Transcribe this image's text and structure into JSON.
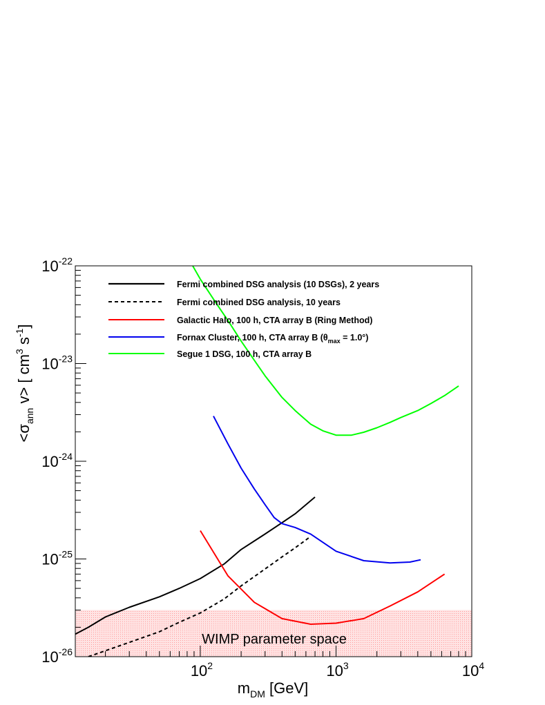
{
  "chart_data": {
    "type": "line",
    "xlabel": {
      "base": "m",
      "sub": "DM",
      "rest": " [GeV]"
    },
    "ylabel": {
      "pre": "<σ",
      "sub": "ann",
      "mid": " v> [ cm",
      "sup1": "3",
      "mid2": " s",
      "sup2": "-1",
      "post": "]"
    },
    "xscale": "log",
    "yscale": "log",
    "xlim": [
      12,
      10000
    ],
    "ylim": [
      1e-26,
      1e-22
    ],
    "x_ticks": [
      {
        "value": 100,
        "base": "10",
        "exp": "2"
      },
      {
        "value": 1000,
        "base": "10",
        "exp": "3"
      },
      {
        "value": 10000,
        "base": "10",
        "exp": "4"
      }
    ],
    "y_ticks": [
      {
        "value": 1e-26,
        "base": "10",
        "exp": "-26"
      },
      {
        "value": 1e-25,
        "base": "10",
        "exp": "-25"
      },
      {
        "value": 1e-24,
        "base": "10",
        "exp": "-24"
      },
      {
        "value": 1e-23,
        "base": "10",
        "exp": "-23"
      },
      {
        "value": 1e-22,
        "base": "10",
        "exp": "-22"
      }
    ],
    "legend_placement": "top-left",
    "grid": false,
    "series": [
      {
        "name": "Fermi combined DSG analysis (10 DSGs), 2 years",
        "color": "#000000",
        "dash": "solid",
        "x": [
          12,
          15,
          20,
          30,
          50,
          70,
          100,
          150,
          200,
          300,
          400,
          500,
          700
        ],
        "y": [
          1.7e-26,
          2e-26,
          2.55e-26,
          3.2e-26,
          4.1e-26,
          5e-26,
          6.3e-26,
          8.9e-26,
          1.25e-25,
          1.8e-25,
          2.35e-25,
          2.9e-25,
          4.3e-25
        ]
      },
      {
        "name": "Fermi combined DSG analysis, 10 years",
        "color": "#000000",
        "dash": "dashed",
        "x": [
          15,
          20,
          30,
          50,
          70,
          100,
          150,
          200,
          300,
          400,
          500,
          650
        ],
        "y": [
          1e-26,
          1.15e-26,
          1.4e-26,
          1.8e-26,
          2.25e-26,
          2.8e-26,
          3.9e-26,
          5.3e-26,
          7.9e-26,
          1.05e-25,
          1.3e-25,
          1.7e-25
        ]
      },
      {
        "name": {
          "text": "Galactic Halo, 100 h, CTA array B (Ring Method)"
        },
        "color": "#ff0000",
        "dash": "solid",
        "x": [
          100,
          160,
          250,
          400,
          650,
          1000,
          1600,
          2500,
          4000,
          6300
        ],
        "y": [
          1.95e-25,
          6.7e-26,
          3.6e-26,
          2.45e-26,
          2.15e-26,
          2.2e-26,
          2.45e-26,
          3.3e-26,
          4.6e-26,
          7e-26
        ]
      },
      {
        "name": "Fornax Cluster, 100 h, CTA array B",
        "name_suffix": {
          "pre": " (θ",
          "sub": "max",
          "post": " = 1.0°)"
        },
        "color": "#0000ee",
        "dash": "solid",
        "x": [
          125,
          160,
          200,
          250,
          300,
          350,
          400,
          500,
          650,
          1000,
          1600,
          2500,
          3500,
          4200
        ],
        "y": [
          2.9e-24,
          1.5e-24,
          8.5e-25,
          5.2e-25,
          3.6e-25,
          2.65e-25,
          2.3e-25,
          2.1e-25,
          1.8e-25,
          1.2e-25,
          9.6e-26,
          9.1e-26,
          9.3e-26,
          9.8e-26
        ]
      },
      {
        "name": "Segue 1 DSG, 100 h, CTA array B",
        "color": "#00ff00",
        "dash": "solid",
        "x": [
          88,
          100,
          130,
          160,
          200,
          250,
          300,
          400,
          500,
          650,
          800,
          1000,
          1300,
          1600,
          2000,
          2500,
          3000,
          4000,
          5000,
          6300,
          8000
        ],
        "y": [
          1e-22,
          7.3e-23,
          4.2e-23,
          2.75e-23,
          1.7e-23,
          1.08e-23,
          7.5e-24,
          4.5e-24,
          3.3e-24,
          2.4e-24,
          2.05e-24,
          1.85e-24,
          1.85e-24,
          1.98e-24,
          2.2e-24,
          2.5e-24,
          2.8e-24,
          3.3e-24,
          3.9e-24,
          4.7e-24,
          5.9e-24
        ]
      }
    ],
    "shaded_region": {
      "label": "WIMP parameter space",
      "color": "#ffcccc",
      "y_range": [
        1e-26,
        3e-26
      ],
      "x_range": [
        12,
        10000
      ]
    }
  }
}
